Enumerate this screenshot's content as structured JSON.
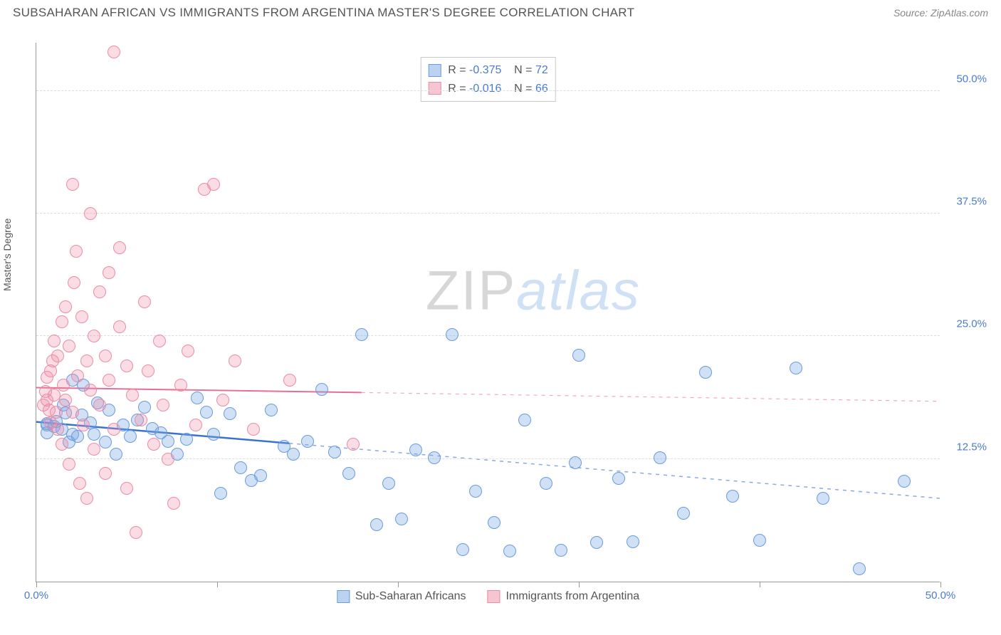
{
  "header": {
    "title": "SUBSAHARAN AFRICAN VS IMMIGRANTS FROM ARGENTINA MASTER'S DEGREE CORRELATION CHART",
    "source_prefix": "Source: ",
    "source_name": "ZipAtlas.com"
  },
  "watermark": {
    "part1": "ZIP",
    "part2": "atlas"
  },
  "chart": {
    "type": "scatter",
    "ylabel": "Master's Degree",
    "xlim": [
      0,
      50
    ],
    "ylim": [
      0,
      55
    ],
    "xtick_positions": [
      0,
      10,
      20,
      30,
      40,
      50
    ],
    "xtick_labels": {
      "0": "0.0%",
      "50": "50.0%"
    },
    "ytick_positions": [
      12.5,
      25.0,
      37.5,
      50.0
    ],
    "ytick_labels": [
      "12.5%",
      "25.0%",
      "37.5%",
      "50.0%"
    ],
    "grid_color": "#dddddd",
    "axis_color": "#999999",
    "background": "#ffffff",
    "marker_radius": 9,
    "series": [
      {
        "id": "blue",
        "name": "Sub-Saharan Africans",
        "color_fill": "rgba(120,165,225,0.35)",
        "color_stroke": "#6a9be0",
        "R": "-0.375",
        "N": "72",
        "trend": {
          "x1": 0,
          "y1": 16.3,
          "x2": 50,
          "y2": 8.5,
          "solid_until_x": 14,
          "stroke": "#3a73cf",
          "width": 2.5
        },
        "points": [
          [
            0.6,
            16.1
          ],
          [
            0.6,
            16.0
          ],
          [
            0.6,
            15.2
          ],
          [
            1.0,
            15.8
          ],
          [
            1.1,
            16.3
          ],
          [
            1.4,
            15.5
          ],
          [
            1.5,
            18.0
          ],
          [
            1.6,
            17.2
          ],
          [
            1.8,
            14.2
          ],
          [
            2.0,
            20.5
          ],
          [
            2.0,
            15.0
          ],
          [
            2.3,
            14.8
          ],
          [
            2.5,
            17.0
          ],
          [
            2.6,
            20.0
          ],
          [
            3.0,
            16.2
          ],
          [
            3.2,
            15.0
          ],
          [
            3.4,
            18.2
          ],
          [
            3.8,
            14.2
          ],
          [
            4.0,
            17.5
          ],
          [
            4.4,
            13.0
          ],
          [
            4.8,
            16.0
          ],
          [
            5.2,
            14.8
          ],
          [
            5.6,
            16.5
          ],
          [
            6.0,
            17.8
          ],
          [
            6.4,
            15.6
          ],
          [
            6.9,
            15.2
          ],
          [
            7.3,
            14.3
          ],
          [
            7.8,
            13.0
          ],
          [
            8.3,
            14.5
          ],
          [
            8.9,
            18.7
          ],
          [
            9.4,
            17.3
          ],
          [
            9.8,
            15.0
          ],
          [
            10.2,
            9.0
          ],
          [
            10.7,
            17.1
          ],
          [
            11.3,
            11.6
          ],
          [
            11.9,
            10.3
          ],
          [
            12.4,
            10.8
          ],
          [
            13.0,
            17.5
          ],
          [
            13.7,
            13.8
          ],
          [
            14.2,
            13.0
          ],
          [
            15.0,
            14.3
          ],
          [
            15.8,
            19.6
          ],
          [
            16.5,
            13.2
          ],
          [
            17.3,
            11.0
          ],
          [
            18.0,
            25.2
          ],
          [
            18.8,
            5.8
          ],
          [
            19.5,
            10.0
          ],
          [
            20.2,
            6.4
          ],
          [
            21.0,
            13.4
          ],
          [
            22.0,
            12.6
          ],
          [
            23.0,
            25.2
          ],
          [
            23.6,
            3.3
          ],
          [
            24.3,
            9.2
          ],
          [
            25.3,
            6.0
          ],
          [
            26.2,
            3.1
          ],
          [
            27.0,
            16.5
          ],
          [
            28.2,
            10.0
          ],
          [
            29.0,
            3.2
          ],
          [
            29.8,
            12.1
          ],
          [
            30.0,
            23.1
          ],
          [
            31.0,
            4.0
          ],
          [
            32.2,
            10.5
          ],
          [
            33.0,
            4.1
          ],
          [
            34.5,
            12.6
          ],
          [
            35.8,
            7.0
          ],
          [
            37.0,
            21.3
          ],
          [
            38.5,
            8.7
          ],
          [
            40.0,
            4.2
          ],
          [
            42.0,
            21.8
          ],
          [
            43.5,
            8.5
          ],
          [
            45.5,
            1.3
          ],
          [
            48.0,
            10.2
          ]
        ]
      },
      {
        "id": "pink",
        "name": "Immigrants from Argentina",
        "color_fill": "rgba(240,140,165,0.30)",
        "color_stroke": "#ec8ba5",
        "R": "-0.016",
        "N": "66",
        "trend": {
          "x1": 0,
          "y1": 19.8,
          "x2": 50,
          "y2": 18.4,
          "solid_until_x": 18,
          "stroke": "#e86e93",
          "width": 2.0
        },
        "points": [
          [
            0.4,
            18.0
          ],
          [
            0.5,
            19.4
          ],
          [
            0.6,
            18.5
          ],
          [
            0.6,
            20.8
          ],
          [
            0.7,
            17.5
          ],
          [
            0.8,
            21.5
          ],
          [
            0.8,
            16.2
          ],
          [
            0.9,
            22.5
          ],
          [
            1.0,
            19.0
          ],
          [
            1.0,
            24.5
          ],
          [
            1.1,
            17.3
          ],
          [
            1.2,
            23.0
          ],
          [
            1.2,
            15.5
          ],
          [
            1.4,
            26.5
          ],
          [
            1.4,
            14.0
          ],
          [
            1.5,
            20.0
          ],
          [
            1.6,
            28.0
          ],
          [
            1.6,
            18.5
          ],
          [
            1.8,
            24.0
          ],
          [
            1.8,
            12.0
          ],
          [
            2.0,
            40.5
          ],
          [
            2.0,
            17.3
          ],
          [
            2.1,
            30.5
          ],
          [
            2.2,
            33.7
          ],
          [
            2.3,
            21.0
          ],
          [
            2.4,
            10.0
          ],
          [
            2.5,
            27.0
          ],
          [
            2.6,
            16.0
          ],
          [
            2.8,
            22.5
          ],
          [
            2.8,
            8.5
          ],
          [
            3.0,
            19.5
          ],
          [
            3.0,
            37.5
          ],
          [
            3.2,
            25.0
          ],
          [
            3.2,
            13.5
          ],
          [
            3.5,
            29.5
          ],
          [
            3.5,
            18.0
          ],
          [
            3.8,
            23.0
          ],
          [
            3.8,
            11.0
          ],
          [
            4.0,
            31.5
          ],
          [
            4.0,
            20.5
          ],
          [
            4.3,
            54.0
          ],
          [
            4.3,
            15.5
          ],
          [
            4.6,
            26.0
          ],
          [
            4.6,
            34.0
          ],
          [
            5.0,
            22.0
          ],
          [
            5.0,
            9.5
          ],
          [
            5.3,
            19.0
          ],
          [
            5.5,
            5.0
          ],
          [
            5.8,
            16.5
          ],
          [
            6.0,
            28.5
          ],
          [
            6.2,
            21.5
          ],
          [
            6.5,
            14.0
          ],
          [
            6.8,
            24.5
          ],
          [
            7.0,
            18.0
          ],
          [
            7.3,
            12.5
          ],
          [
            7.6,
            8.0
          ],
          [
            8.0,
            20.0
          ],
          [
            8.4,
            23.5
          ],
          [
            8.8,
            16.0
          ],
          [
            9.3,
            40.0
          ],
          [
            9.8,
            40.5
          ],
          [
            10.3,
            18.5
          ],
          [
            11.0,
            22.5
          ],
          [
            12.0,
            15.5
          ],
          [
            14.0,
            20.5
          ],
          [
            17.5,
            14.0
          ]
        ]
      }
    ],
    "stat_legend": {
      "R_label": "R =",
      "N_label": "N ="
    }
  }
}
